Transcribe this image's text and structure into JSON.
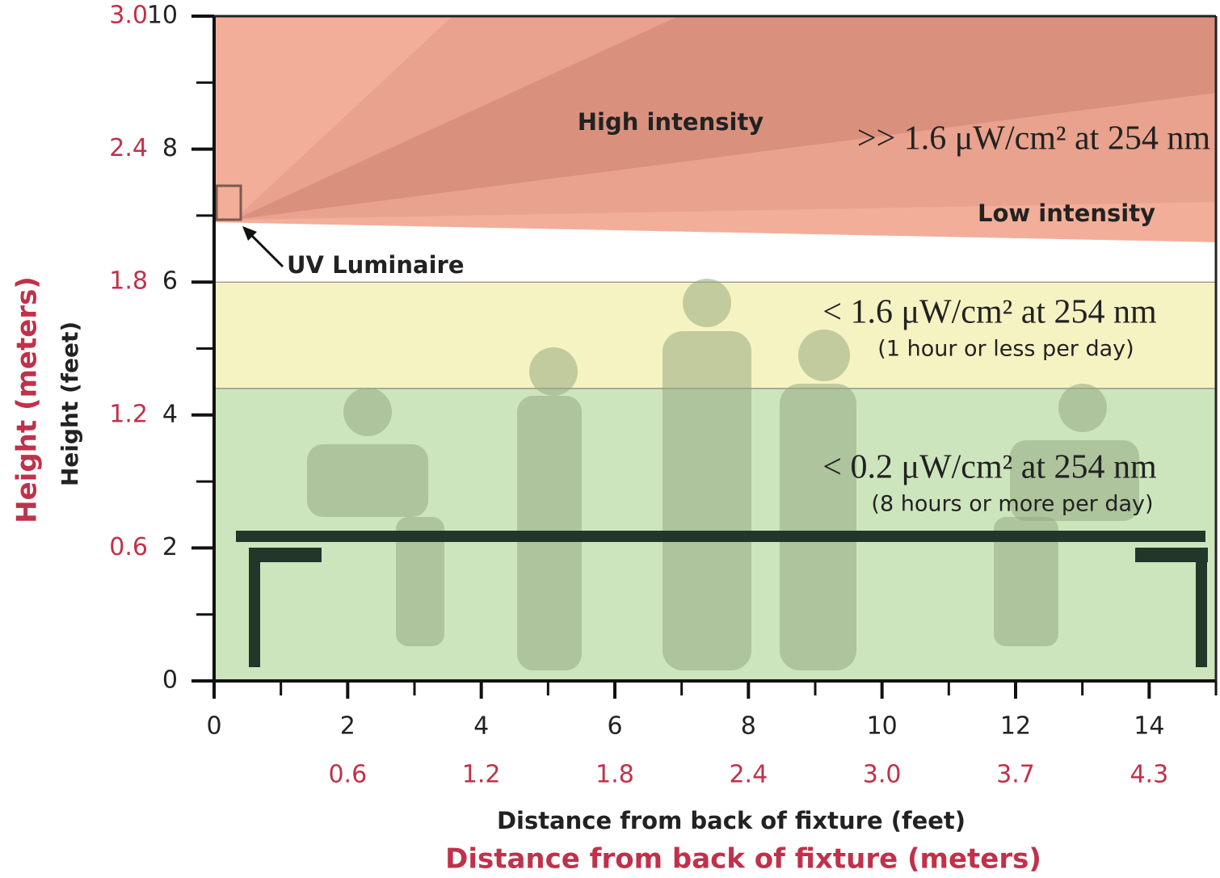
{
  "y_axis": {
    "title_feet": "Height (feet)",
    "title_meters": "Height (meters)",
    "lim": [
      0,
      10
    ],
    "ticks": [
      0,
      2,
      4,
      6,
      8,
      10
    ],
    "meter_labels": [
      null,
      "0.6",
      "1.2",
      "1.8",
      "2.4",
      "3.0"
    ]
  },
  "x_axis": {
    "title_feet": "Distance from back of fixture (feet)",
    "title_meters": "Distance from back of fixture (meters)",
    "lim": [
      0,
      15
    ],
    "ticks": [
      0,
      2,
      4,
      6,
      8,
      10,
      12,
      14
    ],
    "meter_labels": [
      null,
      "0.6",
      "1.2",
      "1.8",
      "2.4",
      "3.0",
      "3.7",
      "4.3"
    ]
  },
  "zones": {
    "upper": {
      "label": ">> 1.6 μW/cm² at 254 nm",
      "high": "High intensity",
      "low": "Low intensity",
      "bottom_left": 6.9,
      "bottom_right": 6.6
    },
    "middle": {
      "label": "< 1.6 μW/cm² at 254 nm",
      "note": "(1 hour or less per day)",
      "ylim": [
        4.4,
        6
      ]
    },
    "lower": {
      "label": "< 0.2 μW/cm² at 254 nm",
      "note": "(8 hours or more per day)",
      "ylim": [
        0,
        4.4
      ]
    }
  },
  "luminaire": {
    "label": "UV Luminaire"
  }
}
